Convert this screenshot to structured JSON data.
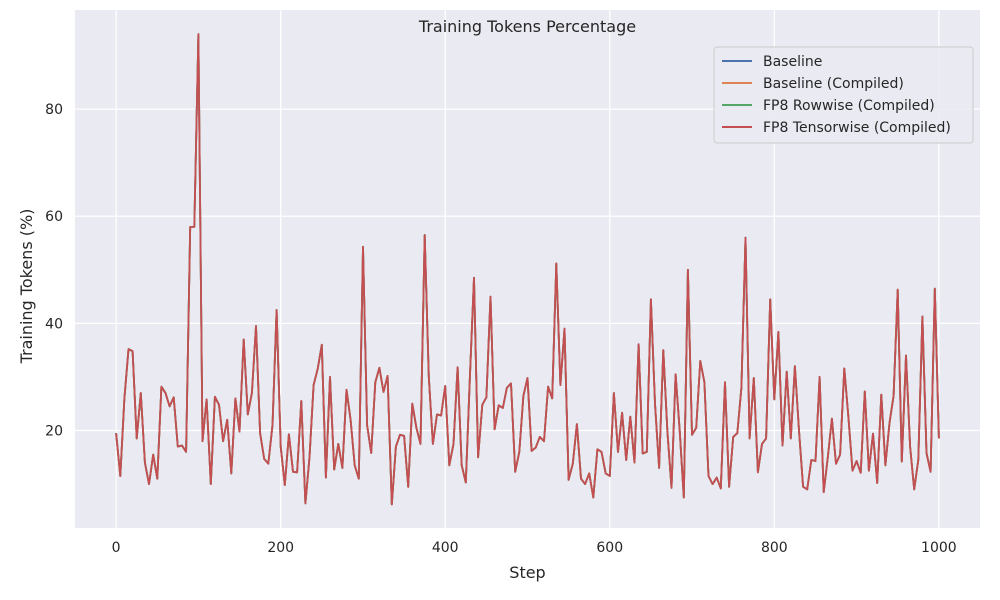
{
  "chart_data": {
    "type": "line",
    "title": "Training Tokens Percentage",
    "xlabel": "Step",
    "ylabel": "Training Tokens (%)",
    "xlim": [
      -50,
      1050
    ],
    "ylim": [
      1.8,
      98.5
    ],
    "xticks": [
      0,
      200,
      400,
      600,
      800,
      1000
    ],
    "yticks": [
      20,
      40,
      60,
      80
    ],
    "grid": true,
    "legend_position": "top-right",
    "series": [
      {
        "name": "Baseline",
        "color": "#4c72b0"
      },
      {
        "name": "Baseline (Compiled)",
        "color": "#dd8452"
      },
      {
        "name": "FP8 Rowwise (Compiled)",
        "color": "#55a868"
      },
      {
        "name": "FP8 Tensorwise (Compiled)",
        "color": "#c44e52"
      }
    ],
    "x": [
      0,
      5,
      10,
      15,
      20,
      25,
      30,
      35,
      40,
      45,
      50,
      55,
      60,
      65,
      70,
      75,
      80,
      85,
      90,
      95,
      100,
      105,
      110,
      115,
      120,
      125,
      130,
      135,
      140,
      145,
      150,
      155,
      160,
      165,
      170,
      175,
      180,
      185,
      190,
      195,
      200,
      205,
      210,
      215,
      220,
      225,
      230,
      235,
      240,
      245,
      250,
      255,
      260,
      265,
      270,
      275,
      280,
      285,
      290,
      295,
      300,
      305,
      310,
      315,
      320,
      325,
      330,
      335,
      340,
      345,
      350,
      355,
      360,
      365,
      370,
      375,
      380,
      385,
      390,
      395,
      400,
      405,
      410,
      415,
      420,
      425,
      430,
      435,
      440,
      445,
      450,
      455,
      460,
      465,
      470,
      475,
      480,
      485,
      490,
      495,
      500,
      505,
      510,
      515,
      520,
      525,
      530,
      535,
      540,
      545,
      550,
      555,
      560,
      565,
      570,
      575,
      580,
      585,
      590,
      595,
      600,
      605,
      610,
      615,
      620,
      625,
      630,
      635,
      640,
      645,
      650,
      655,
      660,
      665,
      670,
      675,
      680,
      685,
      690,
      695,
      700,
      705,
      710,
      715,
      720,
      725,
      730,
      735,
      740,
      745,
      750,
      755,
      760,
      765,
      770,
      775,
      780,
      785,
      790,
      795,
      800,
      805,
      810,
      815,
      820,
      825,
      830,
      835,
      840,
      845,
      850,
      855,
      860,
      865,
      870,
      875,
      880,
      885,
      890,
      895,
      900,
      905,
      910,
      915,
      920,
      925,
      930,
      935,
      940,
      945,
      950,
      955,
      960,
      965,
      970,
      975,
      980,
      985,
      990,
      995,
      1000
    ],
    "values": [
      19.5,
      11.5,
      26,
      35.2,
      34.8,
      18.5,
      27,
      14,
      10,
      15.5,
      11,
      28.2,
      27,
      24.5,
      26.2,
      17,
      17.2,
      16,
      58,
      58,
      94,
      18,
      25.8,
      10,
      26.3,
      24.8,
      18,
      22,
      12,
      26,
      19.8,
      37,
      23,
      27,
      39.5,
      19.5,
      14.7,
      13.8,
      21,
      42.5,
      17,
      9.8,
      19.3,
      12.3,
      12.2,
      25.5,
      6.4,
      15,
      28.5,
      31.5,
      36,
      11.2,
      30,
      12.7,
      17.5,
      13,
      27.6,
      22,
      13.5,
      11,
      54.3,
      21,
      15.8,
      29,
      31.7,
      27.2,
      30.2,
      6.2,
      17,
      19.2,
      19,
      9.5,
      25,
      20.5,
      17.5,
      56.5,
      30,
      17.5,
      23,
      22.8,
      28.3,
      13.5,
      17.5,
      31.8,
      13.5,
      10.3,
      30,
      48.5,
      15,
      24.8,
      26.2,
      45,
      20.2,
      24.7,
      24.2,
      28,
      28.8,
      12.3,
      16,
      26.5,
      29.8,
      16.2,
      16.8,
      18.8,
      18,
      28.2,
      26,
      51.2,
      28.5,
      39,
      10.8,
      13.8,
      21.2,
      11,
      10,
      12,
      7.5,
      16.5,
      16,
      12,
      11.5,
      27,
      16,
      23.3,
      14.5,
      22.6,
      14,
      36.1,
      15.7,
      16,
      44.5,
      25,
      13,
      35,
      19.8,
      9.3,
      30.5,
      20,
      7.5,
      50,
      19.2,
      20.5,
      33,
      29,
      11.5,
      10,
      11.2,
      9.2,
      29,
      9.5,
      18.8,
      19.5,
      28,
      56,
      18.5,
      29.8,
      12.2,
      17.5,
      18.5,
      44.5,
      25.8,
      38.4,
      17.2,
      31,
      18.5,
      32,
      20,
      9.5,
      9,
      14.5,
      14.3,
      30,
      8.5,
      15,
      22.2,
      13.8,
      15.5,
      31.6,
      22.5,
      12.5,
      14.3,
      12.1,
      27.3,
      12.5,
      19.4,
      10.2,
      26.7,
      13.5,
      21.4,
      26.5,
      46.3,
      14.2,
      34,
      17,
      9,
      14.5,
      41.3,
      15.8,
      12.3,
      46.5,
      18.5
    ]
  }
}
